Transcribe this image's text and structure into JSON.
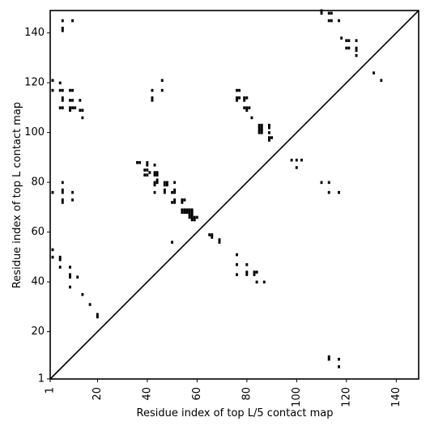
{
  "chart_data": {
    "type": "scatter",
    "title": "",
    "xlabel": "Residue index of top L/5 contact map",
    "ylabel": "Residue index of top L contact map",
    "xlim": [
      1,
      149
    ],
    "ylim": [
      1,
      149
    ],
    "xticks": [
      1,
      20,
      40,
      60,
      80,
      100,
      120,
      140
    ],
    "yticks": [
      1,
      20,
      40,
      60,
      80,
      100,
      120,
      140
    ],
    "grid": false,
    "diagonal": true,
    "marker_color": "#000000",
    "points": [
      [
        6,
        145
      ],
      [
        10,
        145
      ],
      [
        6,
        142
      ],
      [
        6,
        141
      ],
      [
        2,
        121
      ],
      [
        5,
        120
      ],
      [
        2,
        117
      ],
      [
        5,
        117
      ],
      [
        6,
        117
      ],
      [
        9,
        117
      ],
      [
        10,
        117
      ],
      [
        6,
        114
      ],
      [
        6,
        113
      ],
      [
        9,
        113
      ],
      [
        10,
        113
      ],
      [
        13,
        113
      ],
      [
        5,
        110
      ],
      [
        6,
        110
      ],
      [
        9,
        110
      ],
      [
        10,
        110
      ],
      [
        11,
        110
      ],
      [
        9,
        109
      ],
      [
        13,
        109
      ],
      [
        14,
        109
      ],
      [
        14,
        106
      ],
      [
        42,
        117
      ],
      [
        46,
        121
      ],
      [
        46,
        117
      ],
      [
        42,
        114
      ],
      [
        42,
        113
      ],
      [
        76,
        117
      ],
      [
        77,
        117
      ],
      [
        76,
        114
      ],
      [
        77,
        114
      ],
      [
        76,
        113
      ],
      [
        79,
        114
      ],
      [
        80,
        114
      ],
      [
        79,
        113
      ],
      [
        79,
        110
      ],
      [
        80,
        110
      ],
      [
        81,
        110
      ],
      [
        80,
        109
      ],
      [
        82,
        106
      ],
      [
        85,
        103
      ],
      [
        86,
        103
      ],
      [
        85,
        102
      ],
      [
        86,
        102
      ],
      [
        85,
        101
      ],
      [
        86,
        101
      ],
      [
        89,
        103
      ],
      [
        89,
        102
      ],
      [
        85,
        100
      ],
      [
        86,
        100
      ],
      [
        89,
        100
      ],
      [
        89,
        98
      ],
      [
        90,
        98
      ],
      [
        89,
        97
      ],
      [
        98,
        89
      ],
      [
        100,
        89
      ],
      [
        102,
        89
      ],
      [
        100,
        86
      ],
      [
        110,
        80
      ],
      [
        113,
        80
      ],
      [
        113,
        76
      ],
      [
        117,
        76
      ],
      [
        110,
        149
      ],
      [
        110,
        148
      ],
      [
        113,
        148
      ],
      [
        114,
        148
      ],
      [
        113,
        145
      ],
      [
        114,
        145
      ],
      [
        117,
        145
      ],
      [
        118,
        138
      ],
      [
        120,
        137
      ],
      [
        121,
        137
      ],
      [
        124,
        137
      ],
      [
        120,
        134
      ],
      [
        121,
        134
      ],
      [
        124,
        134
      ],
      [
        124,
        133
      ],
      [
        124,
        131
      ],
      [
        131,
        124
      ],
      [
        134,
        121
      ],
      [
        36,
        88
      ],
      [
        37,
        88
      ],
      [
        40,
        88
      ],
      [
        40,
        87
      ],
      [
        43,
        87
      ],
      [
        39,
        85
      ],
      [
        40,
        85
      ],
      [
        41,
        84
      ],
      [
        43,
        84
      ],
      [
        44,
        84
      ],
      [
        39,
        83
      ],
      [
        40,
        83
      ],
      [
        43,
        83
      ],
      [
        44,
        83
      ],
      [
        44,
        81
      ],
      [
        43,
        80
      ],
      [
        44,
        80
      ],
      [
        47,
        80
      ],
      [
        48,
        80
      ],
      [
        51,
        80
      ],
      [
        43,
        79
      ],
      [
        47,
        79
      ],
      [
        48,
        79
      ],
      [
        47,
        77
      ],
      [
        51,
        77
      ],
      [
        43,
        76
      ],
      [
        47,
        76
      ],
      [
        50,
        76
      ],
      [
        51,
        76
      ],
      [
        51,
        73
      ],
      [
        54,
        73
      ],
      [
        50,
        72
      ],
      [
        51,
        72
      ],
      [
        54,
        72
      ],
      [
        55,
        73
      ],
      [
        54,
        69
      ],
      [
        55,
        69
      ],
      [
        56,
        69
      ],
      [
        57,
        69
      ],
      [
        58,
        69
      ],
      [
        54,
        68
      ],
      [
        55,
        68
      ],
      [
        56,
        68
      ],
      [
        57,
        68
      ],
      [
        58,
        68
      ],
      [
        57,
        67
      ],
      [
        58,
        67
      ],
      [
        57,
        66
      ],
      [
        58,
        66
      ],
      [
        59,
        66
      ],
      [
        60,
        66
      ],
      [
        58,
        65
      ],
      [
        59,
        65
      ],
      [
        65,
        59
      ],
      [
        66,
        59
      ],
      [
        66,
        58
      ],
      [
        69,
        57
      ],
      [
        69,
        56
      ],
      [
        50,
        56
      ],
      [
        2,
        76
      ],
      [
        6,
        80
      ],
      [
        6,
        77
      ],
      [
        6,
        76
      ],
      [
        10,
        76
      ],
      [
        6,
        73
      ],
      [
        10,
        73
      ],
      [
        6,
        72
      ],
      [
        2,
        53
      ],
      [
        2,
        50
      ],
      [
        5,
        50
      ],
      [
        5,
        49
      ],
      [
        5,
        46
      ],
      [
        9,
        46
      ],
      [
        9,
        43
      ],
      [
        12,
        42
      ],
      [
        9,
        42
      ],
      [
        9,
        38
      ],
      [
        14,
        35
      ],
      [
        17,
        31
      ],
      [
        20,
        27
      ],
      [
        20,
        26
      ],
      [
        76,
        51
      ],
      [
        76,
        47
      ],
      [
        80,
        47
      ],
      [
        76,
        43
      ],
      [
        80,
        44
      ],
      [
        80,
        43
      ],
      [
        83,
        44
      ],
      [
        84,
        44
      ],
      [
        83,
        43
      ],
      [
        84,
        40
      ],
      [
        87,
        40
      ],
      [
        113,
        10
      ],
      [
        113,
        9
      ],
      [
        117,
        9
      ],
      [
        117,
        6
      ]
    ]
  }
}
